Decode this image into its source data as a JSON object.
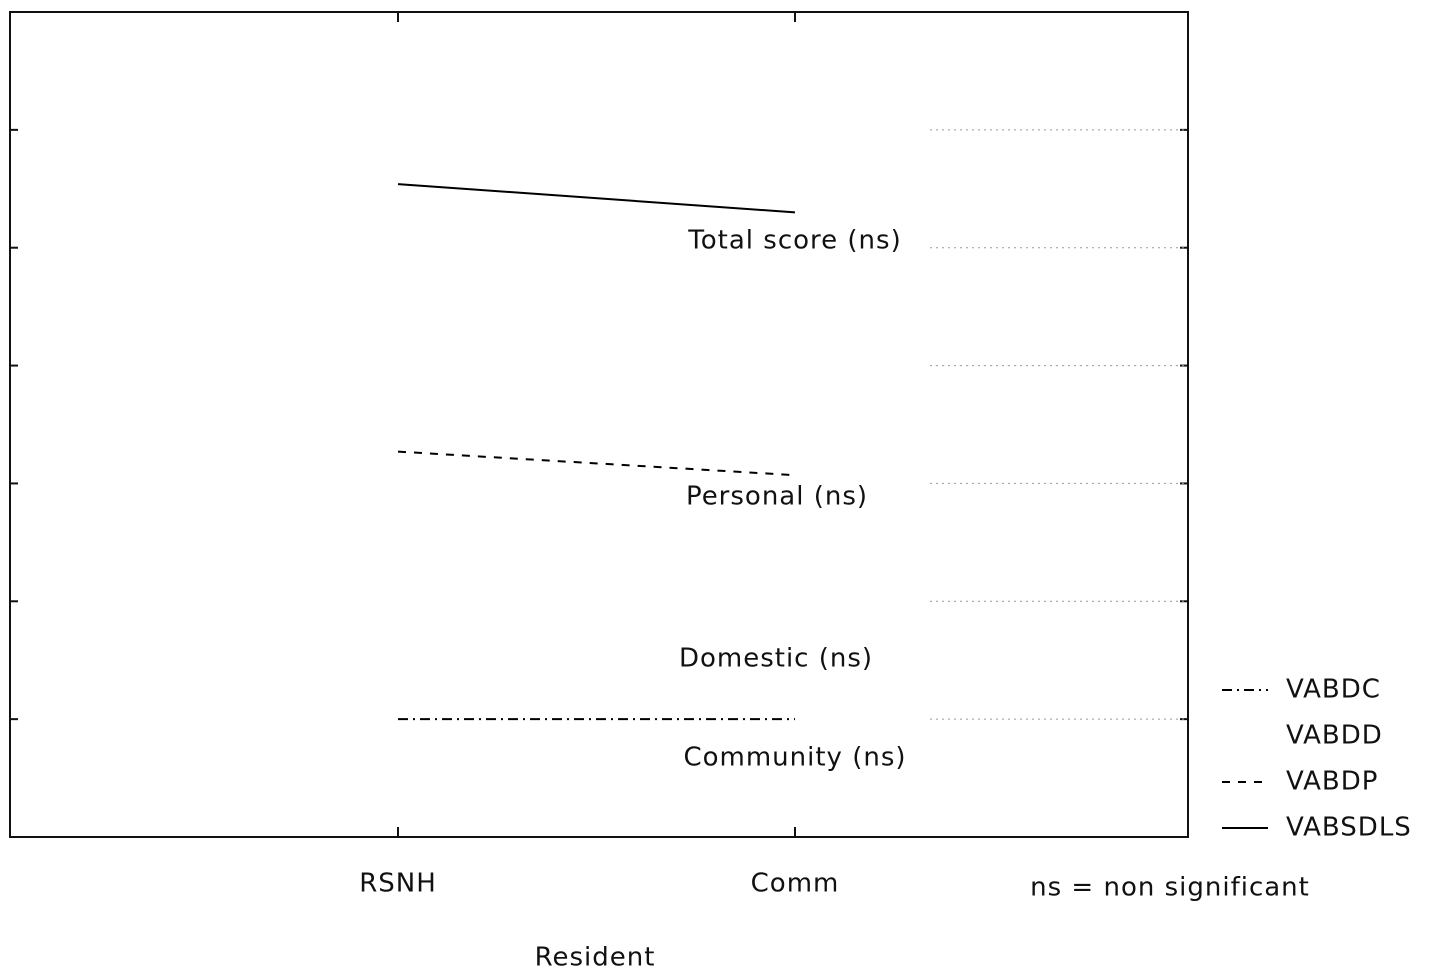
{
  "chart_data": {
    "type": "line",
    "x_label": "Resident",
    "categories": [
      "RSNH",
      "Comm"
    ],
    "series": [
      {
        "name": "VABDC",
        "color": "#000000",
        "dash": "dashdot",
        "values": [
          1.0,
          1.0
        ]
      },
      {
        "name": "VABDD",
        "color": "#000000",
        "dash": "dotted",
        "values": [
          null,
          null
        ]
      },
      {
        "name": "VABDP",
        "color": "#000000",
        "dash": "dashed",
        "values": [
          3.27,
          3.07
        ]
      },
      {
        "name": "VABSDLS",
        "color": "#000000",
        "dash": "solid",
        "values": [
          5.54,
          5.3
        ]
      }
    ],
    "ylim": [
      0,
      7
    ],
    "yticks": [
      1,
      2,
      3,
      4,
      5,
      6
    ],
    "grid": true,
    "annotations": [
      "Total score (ns)",
      "Personal (ns)",
      "Domestic (ns)",
      "Community (ns)"
    ],
    "note": "ns = non significant",
    "legend": "lower right"
  }
}
